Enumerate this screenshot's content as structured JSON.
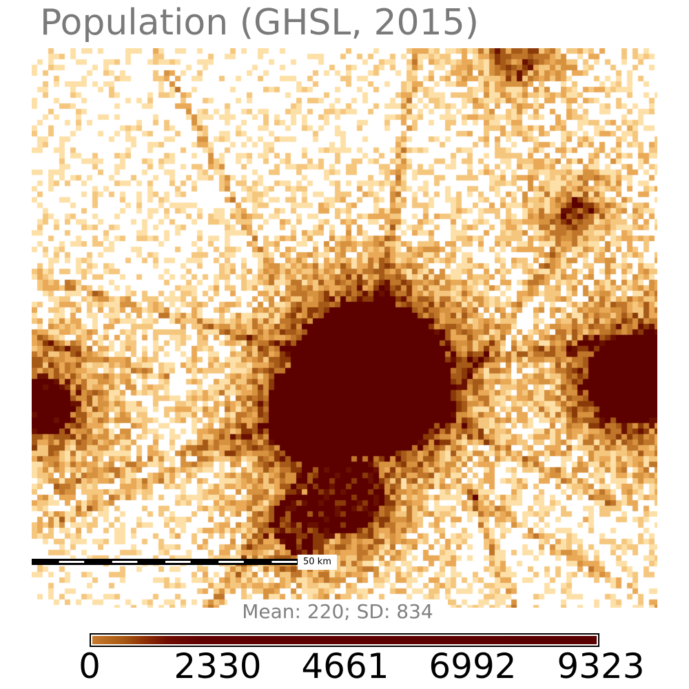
{
  "map": {
    "title": "Population (GHSL, 2015)",
    "scale_label": "50 km",
    "stats": "Mean: 220; SD: 834",
    "colors": {
      "background": "#ffffff",
      "low": "#f5c77e",
      "mid": "#c87a2c",
      "high": "#5c0000",
      "title_text": "#7a7a7a"
    }
  },
  "legend": {
    "ticks": [
      "0",
      "2330",
      "4661",
      "6992",
      "9323"
    ],
    "min": 0,
    "max": 9323
  }
}
